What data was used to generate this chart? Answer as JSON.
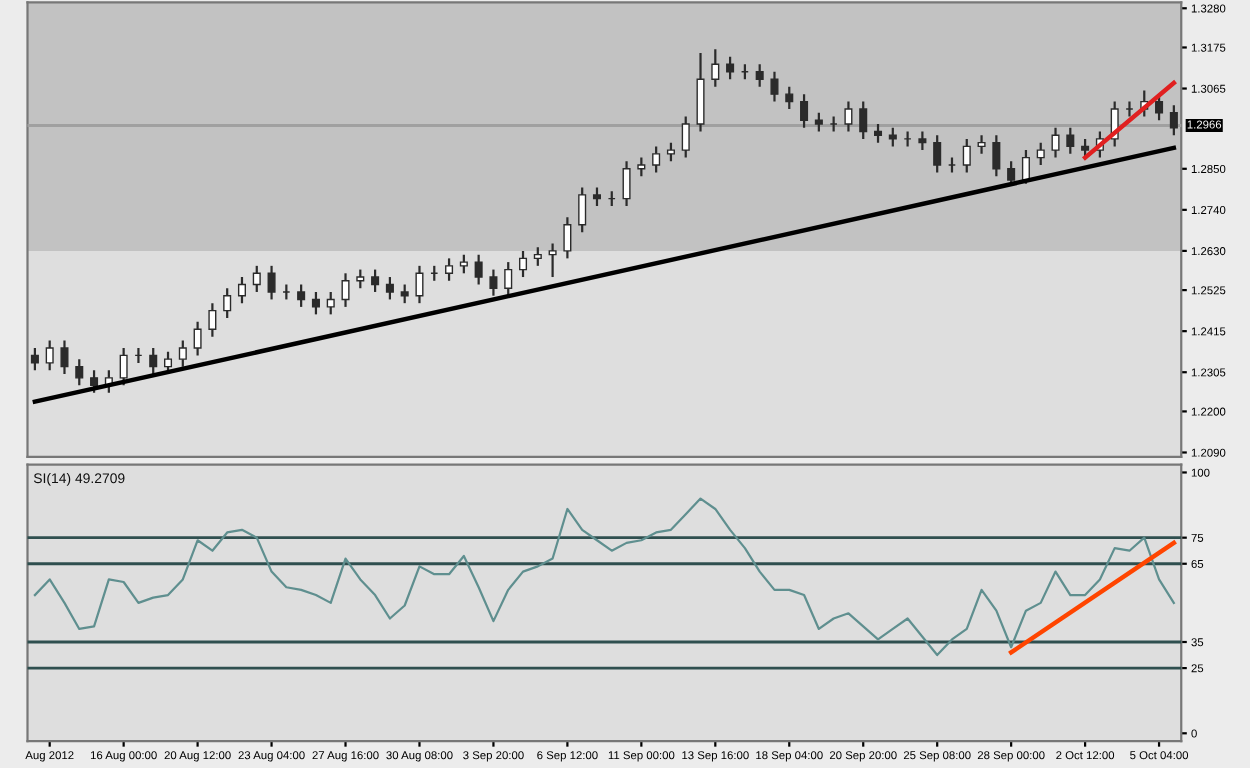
{
  "chart_data": [
    {
      "type": "candlestick",
      "categories": [
        null,
        null,
        null,
        null,
        null,
        null,
        null,
        null,
        null,
        null,
        null,
        null,
        null,
        null,
        null,
        null,
        null,
        null,
        null,
        null,
        null,
        null,
        null,
        null,
        null,
        null,
        null,
        null,
        null,
        null,
        null,
        null,
        null,
        null,
        null,
        null,
        null,
        null,
        null,
        null,
        null,
        null,
        null,
        null,
        null,
        null,
        null,
        null,
        null,
        null,
        null,
        null,
        null,
        null,
        null,
        null,
        null,
        null,
        null,
        null,
        null,
        null,
        null,
        null,
        null,
        null,
        null,
        null,
        null,
        null,
        null,
        null,
        null,
        null,
        null,
        null,
        null,
        null
      ],
      "series": [
        {
          "type": "candlestick",
          "color": "#2b2b2b",
          "ohlc": [
            [
              1.235,
              1.237,
              1.231,
              1.233
            ],
            [
              1.233,
              1.239,
              1.231,
              1.237
            ],
            [
              1.237,
              1.239,
              1.23,
              1.232
            ],
            [
              1.232,
              1.234,
              1.227,
              1.229
            ],
            [
              1.229,
              1.231,
              1.225,
              1.227
            ],
            [
              1.227,
              1.231,
              1.225,
              1.229
            ],
            [
              1.229,
              1.237,
              1.227,
              1.235
            ],
            [
              1.235,
              1.237,
              1.233,
              1.235
            ],
            [
              1.235,
              1.237,
              1.23,
              1.232
            ],
            [
              1.232,
              1.236,
              1.23,
              1.234
            ],
            [
              1.234,
              1.239,
              1.232,
              1.237
            ],
            [
              1.237,
              1.244,
              1.235,
              1.242
            ],
            [
              1.242,
              1.249,
              1.24,
              1.247
            ],
            [
              1.247,
              1.253,
              1.245,
              1.251
            ],
            [
              1.251,
              1.256,
              1.249,
              1.254
            ],
            [
              1.254,
              1.259,
              1.252,
              1.257
            ],
            [
              1.257,
              1.259,
              1.25,
              1.252
            ],
            [
              1.252,
              1.254,
              1.25,
              1.252
            ],
            [
              1.252,
              1.254,
              1.248,
              1.25
            ],
            [
              1.25,
              1.252,
              1.246,
              1.248
            ],
            [
              1.248,
              1.252,
              1.246,
              1.25
            ],
            [
              1.25,
              1.257,
              1.248,
              1.255
            ],
            [
              1.255,
              1.258,
              1.253,
              1.256
            ],
            [
              1.256,
              1.258,
              1.252,
              1.254
            ],
            [
              1.254,
              1.256,
              1.25,
              1.252
            ],
            [
              1.252,
              1.254,
              1.249,
              1.251
            ],
            [
              1.251,
              1.259,
              1.249,
              1.257
            ],
            [
              1.257,
              1.259,
              1.255,
              1.257
            ],
            [
              1.257,
              1.261,
              1.255,
              1.259
            ],
            [
              1.259,
              1.262,
              1.257,
              1.26
            ],
            [
              1.26,
              1.262,
              1.254,
              1.256
            ],
            [
              1.256,
              1.258,
              1.251,
              1.253
            ],
            [
              1.253,
              1.26,
              1.251,
              1.258
            ],
            [
              1.258,
              1.263,
              1.256,
              1.261
            ],
            [
              1.261,
              1.264,
              1.259,
              1.262
            ],
            [
              1.262,
              1.265,
              1.256,
              1.263
            ],
            [
              1.263,
              1.272,
              1.261,
              1.27
            ],
            [
              1.27,
              1.28,
              1.268,
              1.278
            ],
            [
              1.278,
              1.28,
              1.275,
              1.277
            ],
            [
              1.277,
              1.279,
              1.275,
              1.277
            ],
            [
              1.277,
              1.287,
              1.275,
              1.285
            ],
            [
              1.285,
              1.288,
              1.283,
              1.286
            ],
            [
              1.286,
              1.291,
              1.284,
              1.289
            ],
            [
              1.289,
              1.292,
              1.287,
              1.29
            ],
            [
              1.29,
              1.299,
              1.288,
              1.297
            ],
            [
              1.297,
              1.316,
              1.295,
              1.309
            ],
            [
              1.309,
              1.317,
              1.307,
              1.313
            ],
            [
              1.313,
              1.315,
              1.309,
              1.311
            ],
            [
              1.311,
              1.313,
              1.309,
              1.311
            ],
            [
              1.311,
              1.313,
              1.307,
              1.309
            ],
            [
              1.309,
              1.311,
              1.303,
              1.305
            ],
            [
              1.305,
              1.307,
              1.301,
              1.303
            ],
            [
              1.303,
              1.305,
              1.296,
              1.298
            ],
            [
              1.298,
              1.3,
              1.295,
              1.297
            ],
            [
              1.297,
              1.299,
              1.295,
              1.297
            ],
            [
              1.297,
              1.303,
              1.295,
              1.301
            ],
            [
              1.301,
              1.303,
              1.293,
              1.295
            ],
            [
              1.295,
              1.297,
              1.292,
              1.294
            ],
            [
              1.294,
              1.296,
              1.291,
              1.293
            ],
            [
              1.293,
              1.295,
              1.291,
              1.293
            ],
            [
              1.293,
              1.295,
              1.29,
              1.292
            ],
            [
              1.292,
              1.294,
              1.284,
              1.286
            ],
            [
              1.286,
              1.288,
              1.284,
              1.286
            ],
            [
              1.286,
              1.293,
              1.284,
              1.291
            ],
            [
              1.291,
              1.294,
              1.289,
              1.292
            ],
            [
              1.292,
              1.294,
              1.283,
              1.285
            ],
            [
              1.285,
              1.287,
              1.281,
              1.282
            ],
            [
              1.282,
              1.29,
              1.281,
              1.288
            ],
            [
              1.288,
              1.292,
              1.286,
              1.29
            ],
            [
              1.29,
              1.296,
              1.288,
              1.294
            ],
            [
              1.294,
              1.296,
              1.289,
              1.291
            ],
            [
              1.291,
              1.293,
              1.288,
              1.29
            ],
            [
              1.29,
              1.295,
              1.288,
              1.293
            ],
            [
              1.293,
              1.303,
              1.291,
              1.301
            ],
            [
              1.301,
              1.303,
              1.299,
              1.301
            ],
            [
              1.301,
              1.306,
              1.299,
              1.303
            ],
            [
              1.303,
              1.305,
              1.298,
              1.3
            ],
            [
              1.3,
              1.302,
              1.294,
              1.296
            ]
          ]
        },
        {
          "type": "line",
          "color": "#000000",
          "values": [
            1.2226,
            null,
            null,
            null,
            null,
            null,
            null,
            null,
            null,
            null,
            null,
            null,
            null,
            null,
            null,
            null,
            null,
            null,
            null,
            null,
            null,
            null,
            null,
            null,
            null,
            null,
            null,
            null,
            null,
            null,
            null,
            null,
            null,
            null,
            null,
            null,
            null,
            null,
            null,
            null,
            null,
            null,
            null,
            null,
            null,
            null,
            null,
            null,
            null,
            null,
            null,
            null,
            null,
            null,
            null,
            null,
            null,
            null,
            null,
            null,
            null,
            null,
            null,
            null,
            null,
            null,
            null,
            null,
            null,
            null,
            null,
            null,
            null,
            null,
            null,
            null,
            null,
            1.2906
          ]
        },
        {
          "type": "line",
          "color": "#e02020",
          "values": [
            null,
            null,
            null,
            null,
            null,
            null,
            null,
            null,
            null,
            null,
            null,
            null,
            null,
            null,
            null,
            null,
            null,
            null,
            null,
            null,
            null,
            null,
            null,
            null,
            null,
            null,
            null,
            null,
            null,
            null,
            null,
            null,
            null,
            null,
            null,
            null,
            null,
            null,
            null,
            null,
            null,
            null,
            null,
            null,
            null,
            null,
            null,
            null,
            null,
            null,
            null,
            null,
            null,
            null,
            null,
            null,
            null,
            null,
            null,
            null,
            null,
            null,
            null,
            null,
            null,
            null,
            null,
            null,
            null,
            null,
            null,
            1.288,
            null,
            null,
            null,
            null,
            null,
            1.308
          ]
        }
      ],
      "ylim": [
        1.2078,
        1.3296
      ],
      "yticks": [
        {
          "value": 1.209,
          "label": "1.2090"
        },
        {
          "value": 1.22,
          "label": "1.2200"
        },
        {
          "value": 1.2305,
          "label": "1.2305"
        },
        {
          "value": 1.2415,
          "label": "1.2415"
        },
        {
          "value": 1.2525,
          "label": "1.2525"
        },
        {
          "value": 1.263,
          "label": "1.2630"
        },
        {
          "value": 1.274,
          "label": "1.2740"
        },
        {
          "value": 1.285,
          "label": "1.2850"
        },
        {
          "value": 1.3065,
          "label": "1.3065"
        },
        {
          "value": 1.3175,
          "label": "1.3175"
        },
        {
          "value": 1.328,
          "label": "1.3280"
        }
      ],
      "ref_lines": [
        {
          "axis": "y",
          "value": 1.2966,
          "label": "1.2966",
          "color": "#a0a0a0"
        }
      ],
      "bands": [
        {
          "axis": "y",
          "from": 1.263,
          "to": 1.3296,
          "color": "#c2c2c2"
        }
      ],
      "tick_labels": "y"
    },
    {
      "type": "line",
      "categories": [
        null,
        "Aug 2012",
        null,
        null,
        null,
        null,
        "16 Aug 00:00",
        null,
        null,
        null,
        null,
        "20 Aug 12:00",
        null,
        null,
        null,
        null,
        "23 Aug 04:00",
        null,
        null,
        null,
        null,
        "27 Aug 16:00",
        null,
        null,
        null,
        null,
        "30 Aug 08:00",
        null,
        null,
        null,
        null,
        "3 Sep 20:00",
        null,
        null,
        null,
        null,
        "6 Sep 12:00",
        null,
        null,
        null,
        null,
        "11 Sep 00:00",
        null,
        null,
        null,
        null,
        "13 Sep 16:00",
        null,
        null,
        null,
        null,
        "18 Sep 04:00",
        null,
        null,
        null,
        null,
        "20 Sep 20:00",
        null,
        null,
        null,
        null,
        "25 Sep 08:00",
        null,
        null,
        null,
        null,
        "28 Sep 00:00",
        null,
        null,
        null,
        null,
        "2 Oct 12:00",
        null,
        null,
        null,
        null,
        "5 Oct 04:00",
        null
      ],
      "series": [
        {
          "color": "#5f8f8f",
          "values": [
            53,
            59,
            50,
            40,
            41,
            59,
            58,
            50,
            52,
            53,
            59,
            74,
            70,
            77,
            78,
            75,
            62,
            56,
            55,
            53,
            50,
            67,
            59,
            53,
            44,
            49,
            64,
            61,
            61,
            68,
            56,
            43,
            55,
            62,
            64,
            67,
            86,
            78,
            74,
            70,
            73,
            74,
            77,
            78,
            84,
            90,
            86,
            78,
            71,
            62,
            55,
            55,
            53,
            40,
            44,
            46,
            41,
            36,
            40,
            44,
            37,
            30,
            36,
            40,
            55,
            47,
            33,
            47,
            50,
            62,
            53,
            53,
            59,
            71,
            70,
            75,
            59,
            50
          ]
        },
        {
          "color": "#ff4500",
          "values": [
            null,
            null,
            null,
            null,
            null,
            null,
            null,
            null,
            null,
            null,
            null,
            null,
            null,
            null,
            null,
            null,
            null,
            null,
            null,
            null,
            null,
            null,
            null,
            null,
            null,
            null,
            null,
            null,
            null,
            null,
            null,
            null,
            null,
            null,
            null,
            null,
            null,
            null,
            null,
            null,
            null,
            null,
            null,
            null,
            null,
            null,
            null,
            null,
            null,
            null,
            null,
            null,
            null,
            null,
            null,
            null,
            null,
            null,
            null,
            null,
            null,
            null,
            null,
            null,
            null,
            null,
            31,
            null,
            null,
            null,
            null,
            null,
            null,
            null,
            null,
            null,
            null,
            73
          ]
        }
      ],
      "ylim": [
        -3,
        103
      ],
      "yticks": [
        0,
        25,
        35,
        65,
        75,
        100
      ],
      "ref_lines": [
        {
          "axis": "y",
          "value": 75,
          "color": "#2f4f4f"
        },
        {
          "axis": "y",
          "value": 65,
          "color": "#2f4f4f"
        },
        {
          "axis": "y",
          "value": 35,
          "color": "#2f4f4f"
        },
        {
          "axis": "y",
          "value": 25,
          "color": "#2f4f4f"
        }
      ],
      "annotations": [
        "SI(14) 49.2709"
      ]
    }
  ]
}
